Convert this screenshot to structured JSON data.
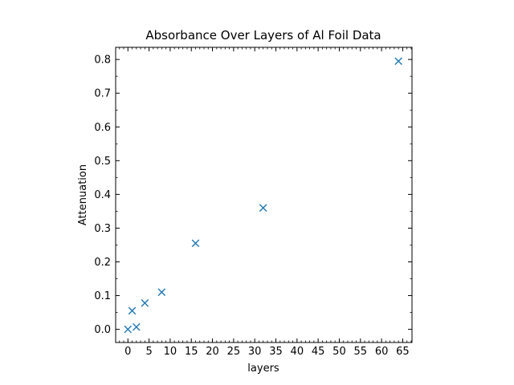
{
  "chart_data": {
    "type": "scatter",
    "title": "Absorbance Over Layers of Al Foil Data",
    "xlabel": "layers",
    "ylabel": "Attenuation",
    "xlim": [
      -2.9,
      67.2
    ],
    "ylim": [
      -0.039,
      0.836
    ],
    "xticks": [
      0,
      5,
      10,
      15,
      20,
      25,
      30,
      35,
      40,
      45,
      50,
      55,
      60,
      65
    ],
    "yticks": [
      0.0,
      0.1,
      0.2,
      0.3,
      0.4,
      0.5,
      0.6,
      0.7,
      0.8
    ],
    "marker": "x",
    "grid": false,
    "series": [
      {
        "color": "#1f77b4",
        "points": [
          {
            "x": 0,
            "y": 0.0
          },
          {
            "x": 1,
            "y": 0.055
          },
          {
            "x": 2,
            "y": 0.007
          },
          {
            "x": 4,
            "y": 0.078
          },
          {
            "x": 8,
            "y": 0.11
          },
          {
            "x": 16,
            "y": 0.255
          },
          {
            "x": 32,
            "y": 0.36
          },
          {
            "x": 64,
            "y": 0.795
          }
        ]
      }
    ]
  }
}
